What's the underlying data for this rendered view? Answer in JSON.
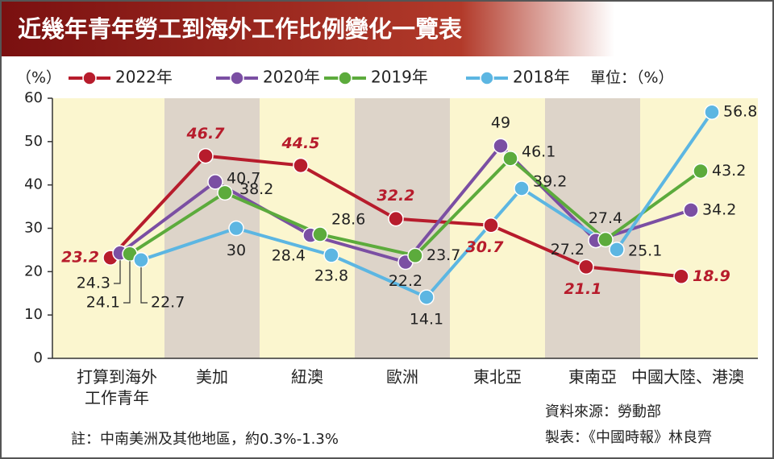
{
  "chart_data": {
    "type": "line",
    "title": "近幾年青年勞工到海外工作比例變化一覽表",
    "y_unit": "（%）",
    "unit_note": "單位：（%）",
    "categories": [
      "打算到海外工作青年",
      "美加",
      "紐澳",
      "歐洲",
      "東北亞",
      "東南亞",
      "中國大陸、港澳"
    ],
    "series": [
      {
        "name": "2022年",
        "color": "#b71c2c",
        "values": [
          23.2,
          46.7,
          44.5,
          32.2,
          30.7,
          21.1,
          18.9
        ]
      },
      {
        "name": "2020年",
        "color": "#7b4fa3",
        "values": [
          24.3,
          40.7,
          28.4,
          22.2,
          49,
          27.2,
          34.2
        ]
      },
      {
        "name": "2019年",
        "color": "#5cab3c",
        "values": [
          24.1,
          38.2,
          28.6,
          23.7,
          46.1,
          27.4,
          43.2
        ]
      },
      {
        "name": "2018年",
        "color": "#5cb6e2",
        "values": [
          22.7,
          30,
          23.8,
          14.1,
          39.2,
          25.1,
          56.8
        ]
      }
    ],
    "ylim": [
      0,
      60
    ],
    "yticks": [
      0,
      10,
      20,
      30,
      40,
      50,
      60
    ],
    "source": "資料來源：勞動部",
    "credit": "製表：《中國時報》林良齊",
    "note": "註：中南美洲及其他地區，約0.3%-1.3%"
  }
}
